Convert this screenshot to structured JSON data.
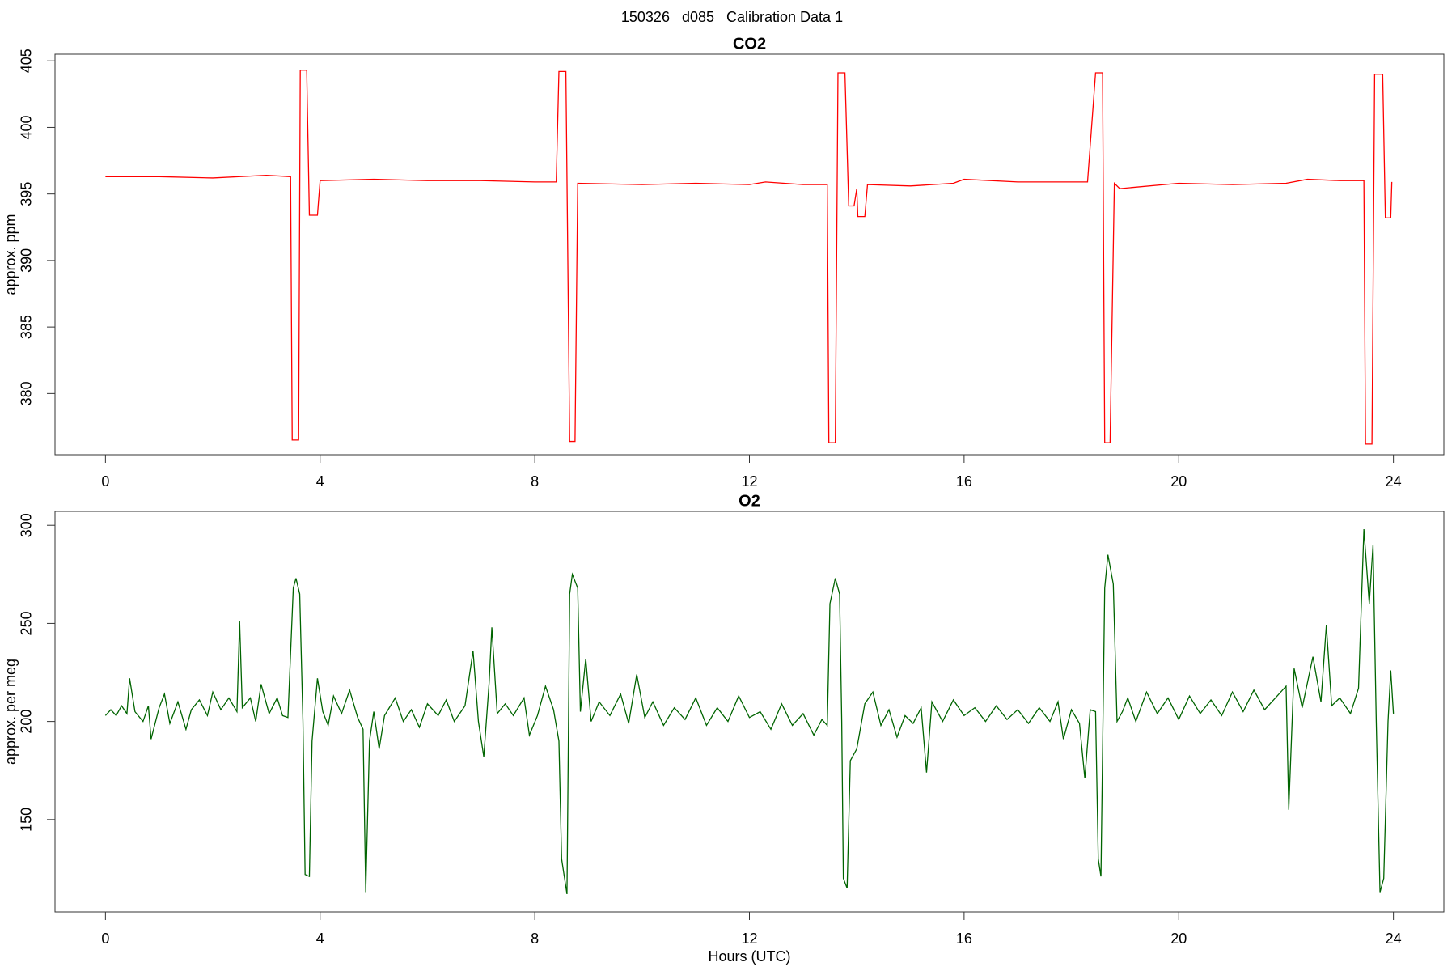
{
  "title": "150326   d085   Calibration Data 1",
  "chart_data": [
    {
      "type": "line",
      "title": "CO2",
      "y_label": "approx. ppm",
      "xlim": [
        -0.94,
        24.94
      ],
      "xticks": [
        0,
        4,
        8,
        12,
        16,
        20,
        24
      ],
      "ylim": [
        375.4,
        405.5
      ],
      "yticks": [
        380,
        385,
        390,
        395,
        400,
        405
      ],
      "series": [
        {
          "name": "CO2",
          "color": "#ff0000",
          "x": [
            0,
            1,
            2,
            3,
            3.45,
            3.48,
            3.6,
            3.63,
            3.75,
            3.8,
            3.95,
            4.0,
            5,
            6,
            7,
            8,
            8.4,
            8.45,
            8.58,
            8.65,
            8.75,
            8.8,
            10,
            11,
            12,
            12.3,
            13,
            13.45,
            13.48,
            13.6,
            13.65,
            13.78,
            13.85,
            13.95,
            14.0,
            14.02,
            14.15,
            14.2,
            15,
            15.8,
            16,
            17,
            18,
            18.3,
            18.45,
            18.58,
            18.62,
            18.72,
            18.8,
            18.9,
            20,
            21,
            22,
            22.4,
            23,
            23.45,
            23.48,
            23.6,
            23.65,
            23.8,
            23.85,
            23.95,
            23.97
          ],
          "values": [
            396.3,
            396.3,
            396.2,
            396.4,
            396.3,
            376.5,
            376.5,
            404.3,
            404.3,
            393.4,
            393.4,
            396.0,
            396.1,
            396.0,
            396.0,
            395.9,
            395.9,
            404.2,
            404.2,
            376.4,
            376.4,
            395.8,
            395.7,
            395.8,
            395.7,
            395.9,
            395.7,
            395.7,
            376.3,
            376.3,
            404.1,
            404.1,
            394.1,
            394.1,
            395.4,
            393.3,
            393.3,
            395.7,
            395.6,
            395.8,
            396.1,
            395.9,
            395.9,
            395.9,
            404.1,
            404.1,
            376.3,
            376.3,
            395.8,
            395.4,
            395.8,
            395.7,
            395.8,
            396.1,
            396.0,
            396.0,
            376.2,
            376.2,
            404.0,
            404.0,
            393.2,
            393.2,
            395.9
          ]
        }
      ]
    },
    {
      "type": "line",
      "title": "O2",
      "y_label": "approx. per meg",
      "x_label": "Hours (UTC)",
      "xlim": [
        -0.94,
        24.94
      ],
      "xticks": [
        0,
        4,
        8,
        12,
        16,
        20,
        24
      ],
      "ylim": [
        102.9,
        307.1
      ],
      "yticks": [
        150,
        200,
        250,
        300
      ],
      "series": [
        {
          "name": "O2",
          "color": "#006400",
          "x": [
            0,
            0.1,
            0.2,
            0.3,
            0.4,
            0.45,
            0.55,
            0.7,
            0.8,
            0.85,
            1.0,
            1.1,
            1.2,
            1.35,
            1.5,
            1.6,
            1.75,
            1.9,
            2.0,
            2.15,
            2.3,
            2.45,
            2.5,
            2.55,
            2.7,
            2.8,
            2.9,
            3.05,
            3.2,
            3.3,
            3.4,
            3.5,
            3.55,
            3.62,
            3.68,
            3.72,
            3.8,
            3.85,
            3.95,
            4.05,
            4.15,
            4.25,
            4.4,
            4.55,
            4.7,
            4.8,
            4.85,
            4.92,
            5.0,
            5.1,
            5.2,
            5.4,
            5.55,
            5.7,
            5.85,
            6.0,
            6.2,
            6.35,
            6.5,
            6.7,
            6.85,
            6.95,
            7.05,
            7.15,
            7.2,
            7.3,
            7.45,
            7.6,
            7.8,
            7.9,
            8.05,
            8.2,
            8.35,
            8.45,
            8.5,
            8.6,
            8.65,
            8.7,
            8.8,
            8.85,
            8.95,
            9.05,
            9.2,
            9.4,
            9.6,
            9.75,
            9.9,
            10.05,
            10.2,
            10.4,
            10.6,
            10.8,
            11.0,
            11.2,
            11.4,
            11.6,
            11.8,
            12.0,
            12.2,
            12.4,
            12.6,
            12.8,
            13.0,
            13.2,
            13.35,
            13.45,
            13.5,
            13.6,
            13.68,
            13.72,
            13.75,
            13.82,
            13.88,
            14.0,
            14.15,
            14.3,
            14.45,
            14.6,
            14.75,
            14.9,
            15.05,
            15.2,
            15.3,
            15.4,
            15.6,
            15.8,
            16.0,
            16.2,
            16.4,
            16.6,
            16.8,
            17.0,
            17.2,
            17.4,
            17.6,
            17.75,
            17.85,
            18.0,
            18.15,
            18.25,
            18.35,
            18.45,
            18.5,
            18.55,
            18.62,
            18.68,
            18.78,
            18.85,
            18.95,
            19.05,
            19.2,
            19.4,
            19.6,
            19.8,
            20.0,
            20.2,
            20.4,
            20.6,
            20.8,
            21.0,
            21.2,
            21.4,
            21.6,
            21.8,
            22.0,
            22.05,
            22.15,
            22.3,
            22.5,
            22.65,
            22.75,
            22.85,
            23.0,
            23.2,
            23.35,
            23.45,
            23.55,
            23.62,
            23.68,
            23.75,
            23.82,
            23.9,
            23.95,
            24.0
          ],
          "values": [
            203,
            206,
            203,
            208,
            204,
            222,
            205,
            200,
            208,
            191,
            207,
            214,
            199,
            210,
            196,
            206,
            211,
            203,
            215,
            206,
            212,
            205,
            251,
            207,
            212,
            200,
            219,
            204,
            212,
            203,
            202,
            268,
            273,
            265,
            200,
            122,
            121,
            190,
            222,
            205,
            198,
            213,
            204,
            216,
            202,
            196,
            113,
            190,
            205,
            186,
            203,
            212,
            200,
            206,
            197,
            209,
            203,
            211,
            200,
            208,
            236,
            200,
            182,
            220,
            248,
            204,
            209,
            203,
            212,
            193,
            203,
            218,
            206,
            190,
            130,
            112,
            265,
            275,
            268,
            205,
            232,
            200,
            210,
            203,
            214,
            199,
            224,
            202,
            210,
            198,
            207,
            201,
            212,
            198,
            207,
            200,
            213,
            202,
            205,
            196,
            209,
            198,
            204,
            193,
            201,
            198,
            260,
            273,
            265,
            200,
            120,
            115,
            180,
            186,
            209,
            215,
            198,
            206,
            192,
            203,
            199,
            207,
            174,
            210,
            200,
            211,
            203,
            207,
            200,
            208,
            201,
            206,
            199,
            207,
            200,
            210,
            191,
            206,
            199,
            171,
            206,
            205,
            130,
            121,
            268,
            285,
            270,
            200,
            205,
            212,
            200,
            215,
            204,
            212,
            201,
            213,
            204,
            211,
            203,
            215,
            205,
            216,
            206,
            212,
            218,
            155,
            227,
            207,
            233,
            210,
            249,
            208,
            212,
            204,
            217,
            298,
            260,
            290,
            200,
            113,
            120,
            200,
            226,
            204
          ]
        }
      ]
    }
  ]
}
